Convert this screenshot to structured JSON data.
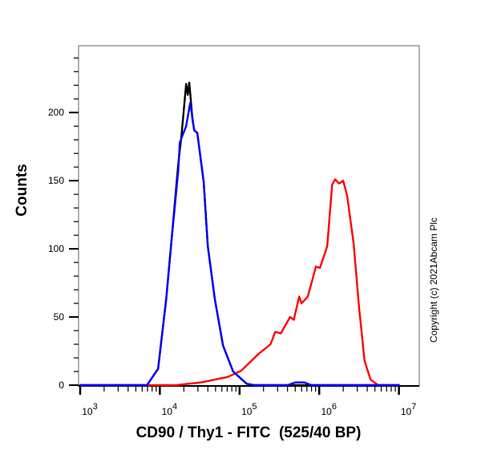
{
  "chart_data": {
    "type": "line",
    "title": "",
    "xlabel": "CD90 / Thy1 - FITC  (525/40 BP)",
    "ylabel": "Counts",
    "xscale": "log",
    "xlim": [
      955,
      18000000
    ],
    "ylim": [
      0,
      249
    ],
    "x_ticks": [
      {
        "value": 1000,
        "base": "10",
        "exp": "3"
      },
      {
        "value": 10000,
        "base": "10",
        "exp": "4"
      },
      {
        "value": 100000,
        "base": "10",
        "exp": "5"
      },
      {
        "value": 1000000,
        "base": "10",
        "exp": "6"
      },
      {
        "value": 10000000,
        "base": "10",
        "exp": "7"
      }
    ],
    "y_ticks": [
      0,
      50,
      100,
      150,
      200
    ],
    "y_minor_step": 10,
    "grid": false,
    "legend": "none",
    "series": [
      {
        "color": "#000000",
        "points": [
          [
            1000,
            0
          ],
          [
            6900,
            0
          ],
          [
            9500,
            12
          ],
          [
            12000,
            63
          ],
          [
            13800,
            102
          ],
          [
            17000,
            162
          ],
          [
            18600,
            182
          ],
          [
            21400,
            221
          ],
          [
            22400,
            213
          ],
          [
            23400,
            222
          ],
          [
            25700,
            195
          ],
          [
            27000,
            187
          ],
          [
            29500,
            185
          ],
          [
            35500,
            149
          ],
          [
            40000,
            102
          ],
          [
            49000,
            63
          ],
          [
            62000,
            29
          ],
          [
            83000,
            10
          ],
          [
            123000,
            1
          ],
          [
            155000,
            0
          ],
          [
            10000000,
            0
          ]
        ]
      },
      {
        "color": "#ff0000",
        "points": [
          [
            1000,
            0
          ],
          [
            16000,
            0
          ],
          [
            33000,
            2
          ],
          [
            71000,
            6
          ],
          [
            105000,
            10.6
          ],
          [
            174000,
            23
          ],
          [
            245000,
            30
          ],
          [
            280000,
            39
          ],
          [
            330000,
            38
          ],
          [
            430000,
            50
          ],
          [
            480000,
            48
          ],
          [
            560000,
            65
          ],
          [
            600000,
            60
          ],
          [
            720000,
            65
          ],
          [
            910000,
            87
          ],
          [
            1020000,
            86
          ],
          [
            1260000,
            102
          ],
          [
            1450000,
            147
          ],
          [
            1580000,
            151
          ],
          [
            1780000,
            148
          ],
          [
            2000000,
            150
          ],
          [
            2240000,
            139
          ],
          [
            2700000,
            104
          ],
          [
            3160000,
            57
          ],
          [
            3700000,
            18
          ],
          [
            4400000,
            4
          ],
          [
            5500000,
            0
          ],
          [
            10000000,
            0
          ]
        ]
      },
      {
        "color": "#0000ff",
        "points": [
          [
            1000,
            0
          ],
          [
            6900,
            0
          ],
          [
            9500,
            12
          ],
          [
            12000,
            63
          ],
          [
            13800,
            102
          ],
          [
            17000,
            157
          ],
          [
            17800,
            178
          ],
          [
            21400,
            190
          ],
          [
            24000,
            207
          ],
          [
            27000,
            187
          ],
          [
            29500,
            185
          ],
          [
            35500,
            149
          ],
          [
            40000,
            102
          ],
          [
            49000,
            63
          ],
          [
            62000,
            29
          ],
          [
            83000,
            10
          ],
          [
            123000,
            1
          ],
          [
            155000,
            0
          ],
          [
            400000,
            0
          ],
          [
            500000,
            2
          ],
          [
            650000,
            2
          ],
          [
            800000,
            0
          ],
          [
            10000000,
            0
          ]
        ]
      }
    ]
  },
  "copyright": "Copyright (c) 2021Abcam Plc"
}
